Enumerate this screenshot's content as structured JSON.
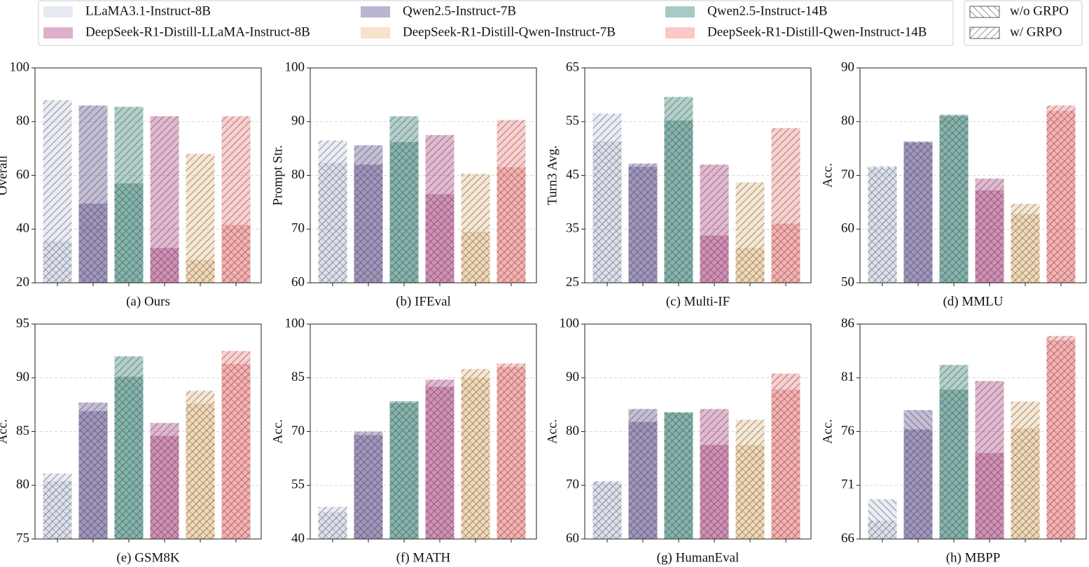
{
  "legend": {
    "models": [
      {
        "name": "LLaMA3.1-Instruct-8B",
        "color": "#c9d0e3"
      },
      {
        "name": "Qwen2.5-Instruct-7B",
        "color": "#6b5b98"
      },
      {
        "name": "Qwen2.5-Instruct-14B",
        "color": "#3f8a7c"
      },
      {
        "name": "DeepSeek-R1-Distill-LLaMA-Instruct-8B",
        "color": "#b9508c"
      },
      {
        "name": "DeepSeek-R1-Distill-Qwen-Instruct-7B",
        "color": "#ecc28c"
      },
      {
        "name": "DeepSeek-R1-Distill-Qwen-Instruct-14B",
        "color": "#f78585"
      }
    ],
    "hatches": [
      {
        "name": "w/o GRPO",
        "hatch": "backslash"
      },
      {
        "name": "w/ GRPO",
        "hatch": "slash"
      }
    ]
  },
  "chart_data": [
    {
      "type": "bar",
      "xlabel": "(a) Ours",
      "ylabel": "Overall",
      "ylim": [
        20,
        100
      ],
      "yticks": [
        20,
        40,
        60,
        80,
        100
      ],
      "grid": true,
      "series": [
        {
          "hatch": "backslash",
          "values": [
            35.5,
            49.5,
            57,
            33,
            28.5,
            41.5
          ]
        },
        {
          "hatch": "slash",
          "values": [
            88,
            86,
            85.5,
            82,
            68,
            82
          ]
        }
      ]
    },
    {
      "type": "bar",
      "xlabel": "(b) IFEval",
      "ylabel": "Prompt Str.",
      "ylim": [
        60,
        100
      ],
      "yticks": [
        60,
        70,
        80,
        90,
        100
      ],
      "grid": true,
      "series": [
        {
          "hatch": "backslash",
          "values": [
            82.3,
            82,
            86.2,
            76.5,
            69.5,
            81.5
          ]
        },
        {
          "hatch": "slash",
          "values": [
            86.5,
            85.6,
            91,
            87.5,
            80.3,
            90.3
          ]
        }
      ]
    },
    {
      "type": "bar",
      "xlabel": "(c) Multi-IF",
      "ylabel": "Turn3 Avg.",
      "ylim": [
        25,
        65
      ],
      "yticks": [
        25,
        35,
        45,
        55,
        65
      ],
      "grid": true,
      "series": [
        {
          "hatch": "backslash",
          "values": [
            51.3,
            46.6,
            55.2,
            33.8,
            31.5,
            36
          ]
        },
        {
          "hatch": "slash",
          "values": [
            56.5,
            47.2,
            59.6,
            47,
            43.7,
            53.8
          ]
        }
      ]
    },
    {
      "type": "bar",
      "xlabel": "(d) MMLU",
      "ylabel": "Acc.",
      "ylim": [
        50,
        90
      ],
      "yticks": [
        50,
        60,
        70,
        80,
        90
      ],
      "grid": true,
      "series": [
        {
          "hatch": "backslash",
          "values": [
            71.7,
            76.3,
            81,
            67.2,
            62.8,
            82
          ]
        },
        {
          "hatch": "slash",
          "values": [
            71.4,
            76.1,
            81.3,
            69.4,
            64.7,
            83
          ]
        }
      ]
    },
    {
      "type": "bar",
      "xlabel": "(e) GSM8K",
      "ylabel": "Acc.",
      "ylim": [
        75,
        95
      ],
      "yticks": [
        75,
        80,
        85,
        90,
        95
      ],
      "grid": true,
      "series": [
        {
          "hatch": "backslash",
          "values": [
            80.4,
            86.9,
            90.1,
            84.6,
            87.6,
            91.3
          ]
        },
        {
          "hatch": "slash",
          "values": [
            81.1,
            87.7,
            92,
            85.8,
            88.8,
            92.5
          ]
        }
      ]
    },
    {
      "type": "bar",
      "xlabel": "(f) MATH",
      "ylabel": "Acc.",
      "ylim": [
        40,
        100
      ],
      "yticks": [
        40,
        55,
        70,
        85,
        100
      ],
      "grid": true,
      "series": [
        {
          "hatch": "backslash",
          "values": [
            47.5,
            69,
            78,
            82.5,
            85,
            88
          ]
        },
        {
          "hatch": "slash",
          "values": [
            49,
            70,
            78.5,
            84.5,
            87.5,
            89
          ]
        }
      ]
    },
    {
      "type": "bar",
      "xlabel": "(g) HumanEval",
      "ylabel": "Acc.",
      "ylim": [
        60,
        100
      ],
      "yticks": [
        60,
        70,
        80,
        90,
        100
      ],
      "grid": true,
      "series": [
        {
          "hatch": "backslash",
          "values": [
            70.5,
            81.8,
            83.5,
            77.5,
            77.5,
            87.8
          ]
        },
        {
          "hatch": "slash",
          "values": [
            70.8,
            84.2,
            83.6,
            84.2,
            82.2,
            90.8
          ]
        }
      ]
    },
    {
      "type": "bar",
      "xlabel": "(h) MBPP",
      "ylabel": "Acc.",
      "ylim": [
        66,
        86
      ],
      "yticks": [
        66,
        71,
        76,
        81,
        86
      ],
      "grid": true,
      "series": [
        {
          "hatch": "backslash",
          "values": [
            69.7,
            78,
            79.9,
            74,
            76.3,
            84.5
          ]
        },
        {
          "hatch": "slash",
          "values": [
            67.7,
            76.2,
            82.2,
            80.7,
            78.8,
            84.9
          ]
        }
      ]
    }
  ]
}
